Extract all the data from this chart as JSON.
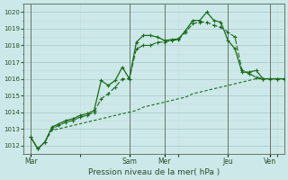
{
  "background_color": "#cce8e8",
  "grid_color_major": "#b0cccc",
  "grid_color_minor": "#c8dddd",
  "line_color": "#1a6b1a",
  "ylim": [
    1011.5,
    1020.5
  ],
  "ylabel_ticks": [
    1012,
    1013,
    1014,
    1015,
    1016,
    1017,
    1018,
    1019,
    1020
  ],
  "xlabel": "Pression niveau de la mer( hPa )",
  "xtick_labels": [
    "Mar",
    "Sam",
    "Mer",
    "Jeu",
    "Ven"
  ],
  "xtick_positions": [
    0,
    14,
    19,
    28,
    34
  ],
  "total_points": 37,
  "xlim": [
    -1,
    36
  ],
  "series1_x": [
    0,
    1,
    2,
    3,
    4,
    5,
    6,
    7,
    8,
    9,
    10,
    11,
    12,
    13,
    14,
    15,
    16,
    17,
    18,
    19,
    20,
    21,
    22,
    23,
    24,
    25,
    26,
    27,
    28,
    29,
    30,
    31,
    32,
    33,
    34,
    35,
    36
  ],
  "series1": [
    1012.5,
    1011.8,
    1012.2,
    1013.1,
    1013.3,
    1013.5,
    1013.6,
    1013.8,
    1013.9,
    1014.1,
    1015.9,
    1015.6,
    1015.9,
    1016.7,
    1016.0,
    1018.2,
    1018.6,
    1018.6,
    1018.5,
    1018.3,
    1018.35,
    1018.4,
    1018.9,
    1019.5,
    1019.5,
    1020.0,
    1019.5,
    1019.4,
    1018.3,
    1017.8,
    1016.4,
    1016.4,
    1016.5,
    1016.0,
    1016.0,
    1016.0,
    1016.0
  ],
  "series2": [
    1012.5,
    1011.8,
    1012.2,
    1013.0,
    1013.2,
    1013.4,
    1013.5,
    1013.7,
    1013.8,
    1014.0,
    1014.8,
    1015.1,
    1015.5,
    1016.0,
    1016.0,
    1017.8,
    1018.0,
    1018.0,
    1018.2,
    1018.2,
    1018.3,
    1018.35,
    1018.8,
    1019.3,
    1019.4,
    1019.4,
    1019.2,
    1019.1,
    1018.8,
    1018.5,
    1016.5,
    1016.3,
    1016.1,
    1016.0,
    1016.0,
    1016.0,
    1016.0
  ],
  "series3": [
    1012.5,
    1011.8,
    1012.2,
    1012.9,
    1013.0,
    1013.1,
    1013.2,
    1013.3,
    1013.4,
    1013.5,
    1013.6,
    1013.7,
    1013.8,
    1013.9,
    1014.0,
    1014.1,
    1014.3,
    1014.4,
    1014.5,
    1014.6,
    1014.7,
    1014.8,
    1014.9,
    1015.1,
    1015.2,
    1015.3,
    1015.4,
    1015.5,
    1015.6,
    1015.7,
    1015.8,
    1015.9,
    1016.0,
    1016.0,
    1016.0,
    1016.0,
    1016.0
  ],
  "series1_has_markers": true,
  "series2_has_markers": true,
  "series3_has_markers": false,
  "figsize": [
    3.2,
    2.0
  ],
  "dpi": 100
}
